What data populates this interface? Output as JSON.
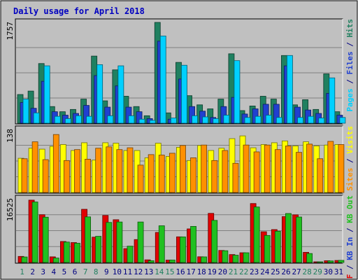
{
  "title": "Daily usage for April 2018",
  "colors": {
    "background": "#C0C0C0",
    "frame": "#EFEFEF",
    "title": "#0000C0",
    "hits": "#208060",
    "files": "#2040D0",
    "pages": "#00D0FF",
    "visits": "#FFFF00",
    "sites": "#FF9000",
    "kb_f": "#E00000",
    "kb_in": "#20C020",
    "kb_out": "#108080",
    "weekend": "#208060",
    "day": "#000080"
  },
  "right_labels": {
    "top": [
      {
        "text": "Pages",
        "color": "#00D0FF"
      },
      {
        "text": " / ",
        "color": "#000080"
      },
      {
        "text": "Files",
        "color": "#2040D0"
      },
      {
        "text": " / ",
        "color": "#000080"
      },
      {
        "text": "Hits",
        "color": "#208060"
      }
    ],
    "middle": [
      {
        "text": "Sites",
        "color": "#FF9000"
      },
      {
        "text": " / ",
        "color": "#000080"
      },
      {
        "text": "Visits",
        "color": "#FFFF00"
      }
    ],
    "bottom": [
      {
        "text": "KB F",
        "color": "#E00000"
      },
      {
        "text": " / ",
        "color": "#000080"
      },
      {
        "text": "KB In",
        "color": "#2040D0"
      },
      {
        "text": " / ",
        "color": "#000080"
      },
      {
        "text": "KB Out",
        "color": "#20C020"
      }
    ]
  },
  "chart_data": {
    "type": "bar",
    "categories": [
      "1",
      "2",
      "3",
      "4",
      "5",
      "6",
      "7",
      "8",
      "9",
      "10",
      "11",
      "12",
      "13",
      "14",
      "15",
      "16",
      "17",
      "18",
      "19",
      "20",
      "21",
      "22",
      "23",
      "24",
      "25",
      "26",
      "27",
      "28",
      "29",
      "30",
      "31"
    ],
    "weekend_days": [
      "1",
      "7",
      "8",
      "14",
      "15",
      "21",
      "22",
      "28",
      "29"
    ],
    "panels": [
      {
        "name": "top",
        "max_label": "1757",
        "ymax": 1757,
        "series": [
          {
            "name": "Hits",
            "values": [
              500,
              560,
              1040,
              290,
              200,
              240,
              420,
              1170,
              390,
              930,
              470,
              290,
              130,
              1757,
              180,
              1060,
              480,
              320,
              250,
              420,
              1210,
              220,
              300,
              470,
              420,
              1180,
              320,
              410,
              240,
              860,
              200
            ]
          },
          {
            "name": "Files",
            "values": [
              360,
              260,
              730,
              200,
              140,
              170,
              310,
              830,
              280,
              650,
              280,
              200,
              80,
              1430,
              70,
              770,
              290,
              210,
              100,
              290,
              450,
              160,
              250,
              330,
              330,
              1000,
              280,
              230,
              170,
              520,
              140
            ]
          },
          {
            "name": "Pages",
            "values": [
              420,
              180,
              1000,
              120,
              80,
              130,
              120,
              1020,
              130,
              1000,
              130,
              70,
              50,
              1520,
              90,
              1010,
              130,
              110,
              80,
              140,
              1090,
              100,
              120,
              140,
              100,
              1180,
              100,
              120,
              90,
              790,
              100
            ]
          }
        ]
      },
      {
        "name": "middle",
        "max_label": "138",
        "ymax": 138,
        "series": [
          {
            "name": "Visits",
            "values": [
              75,
              97,
              95,
              101,
              105,
              92,
              109,
              71,
              109,
              108,
              92,
              92,
              76,
              108,
              79,
              99,
              70,
              103,
              92,
              97,
              118,
              124,
              98,
              105,
              109,
              113,
              102,
              111,
              102,
              104,
              105
            ]
          },
          {
            "name": "Sites",
            "values": [
              74,
              111,
              72,
              127,
              70,
              94,
              73,
              97,
              100,
              94,
              98,
              60,
              83,
              82,
              86,
              103,
              76,
              104,
              70,
              92,
              64,
              104,
              89,
              104,
              94,
              102,
              88,
              106,
              74,
              112,
              105
            ]
          }
        ]
      },
      {
        "name": "bottom",
        "max_label": "16525",
        "ymax": 16525,
        "series": [
          {
            "name": "KB F",
            "values": [
              1580,
              16180,
              12400,
              1470,
              5450,
              5170,
              13800,
              6580,
              12210,
              11100,
              3600,
              5950,
              690,
              7800,
              620,
              6660,
              8720,
              1490,
              12750,
              3130,
              2060,
              2530,
              15300,
              7980,
              8540,
              11900,
              12370,
              2640,
              110,
              460,
              530
            ]
          },
          {
            "name": "KB In",
            "values": [
              1440,
              15700,
              11760,
              1160,
              5300,
              5000,
              11840,
              6800,
              10400,
              10510,
              4240,
              10510,
              460,
              9530,
              640,
              6640,
              9370,
              1460,
              10930,
              3060,
              1900,
              2530,
              14400,
              7020,
              8110,
              12710,
              11800,
              2330,
              50,
              410,
              560
            ]
          }
        ]
      }
    ]
  }
}
